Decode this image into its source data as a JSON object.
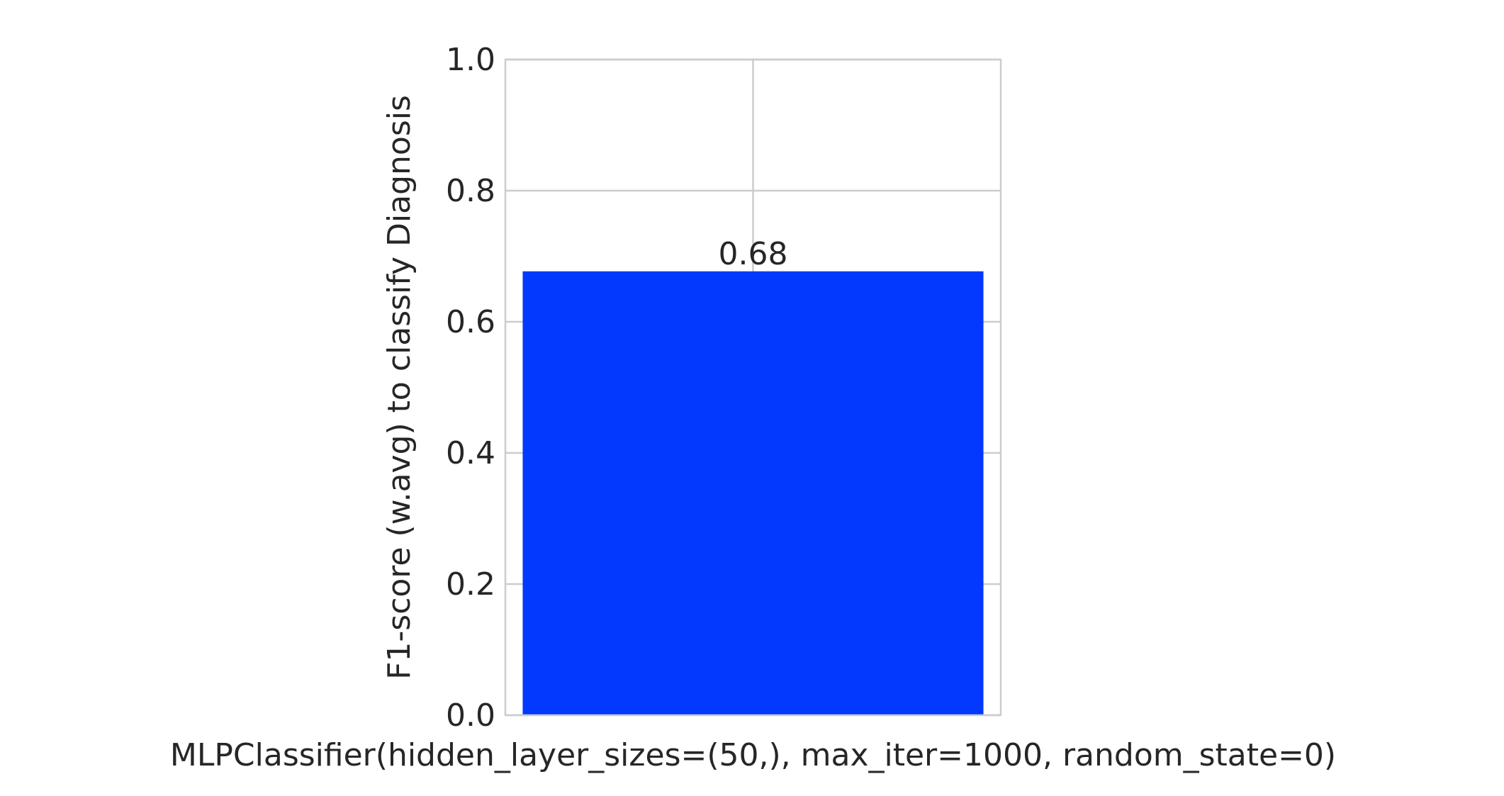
{
  "chart_data": {
    "type": "bar",
    "categories": [
      "MLPClassifier(hidden_layer_sizes=(50,), max_iter=1000, random_state=0)"
    ],
    "values": [
      0.677
    ],
    "data_labels": [
      "0.68"
    ],
    "xlabel": "",
    "ylabel": "F1-score (w.avg) to classify Diagnosis",
    "ylim": [
      0,
      1.0
    ],
    "yticks": [
      0.0,
      0.2,
      0.4,
      0.6,
      0.8,
      1.0
    ],
    "ytick_labels": [
      "0.0",
      "0.2",
      "0.4",
      "0.6",
      "0.8",
      "1.0"
    ],
    "grid": true,
    "legend": false,
    "bar_color": "#0339FF",
    "grid_color": "#CCCCCC",
    "text_color": "#262626"
  }
}
